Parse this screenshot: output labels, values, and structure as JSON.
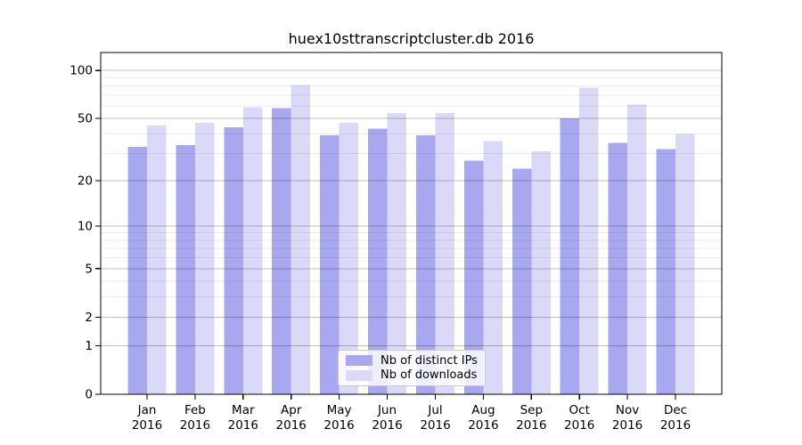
{
  "window": {
    "background": "#ffffff"
  },
  "chart_data": {
    "type": "bar",
    "title": "huex10sttranscriptcluster.db 2016",
    "categories": [
      "Jan 2016",
      "Feb 2016",
      "Mar 2016",
      "Apr 2016",
      "May 2016",
      "Jun 2016",
      "Jul 2016",
      "Aug 2016",
      "Sep 2016",
      "Oct 2016",
      "Nov 2016",
      "Dec 2016"
    ],
    "series": [
      {
        "name": "Nb of distinct IPs",
        "color": "#a8a8f0",
        "values": [
          33,
          34,
          44,
          58,
          39,
          43,
          39,
          27,
          24,
          50,
          35,
          32
        ]
      },
      {
        "name": "Nb of downloads",
        "color": "#dadaf8",
        "values": [
          45,
          47,
          59,
          81,
          47,
          54,
          54,
          36,
          31,
          78,
          61,
          40
        ]
      }
    ],
    "xlabel": "",
    "ylabel": "",
    "y_scale": "log1p",
    "ylim": [
      0,
      130
    ],
    "y_ticks": [
      0,
      1,
      2,
      5,
      10,
      20,
      50,
      100
    ],
    "y_minor_gridlines": [
      1,
      2,
      3,
      4,
      5,
      6,
      7,
      8,
      9,
      10,
      20,
      30,
      40,
      50,
      60,
      70,
      80,
      90,
      100
    ],
    "grid": true,
    "legend_position": "lower center",
    "colors": {
      "spine": "#000000",
      "tick_label": "#000000",
      "grid_minor": "rgba(0,0,0,0.08)",
      "grid_major": "rgba(0,0,0,0.18)"
    }
  }
}
